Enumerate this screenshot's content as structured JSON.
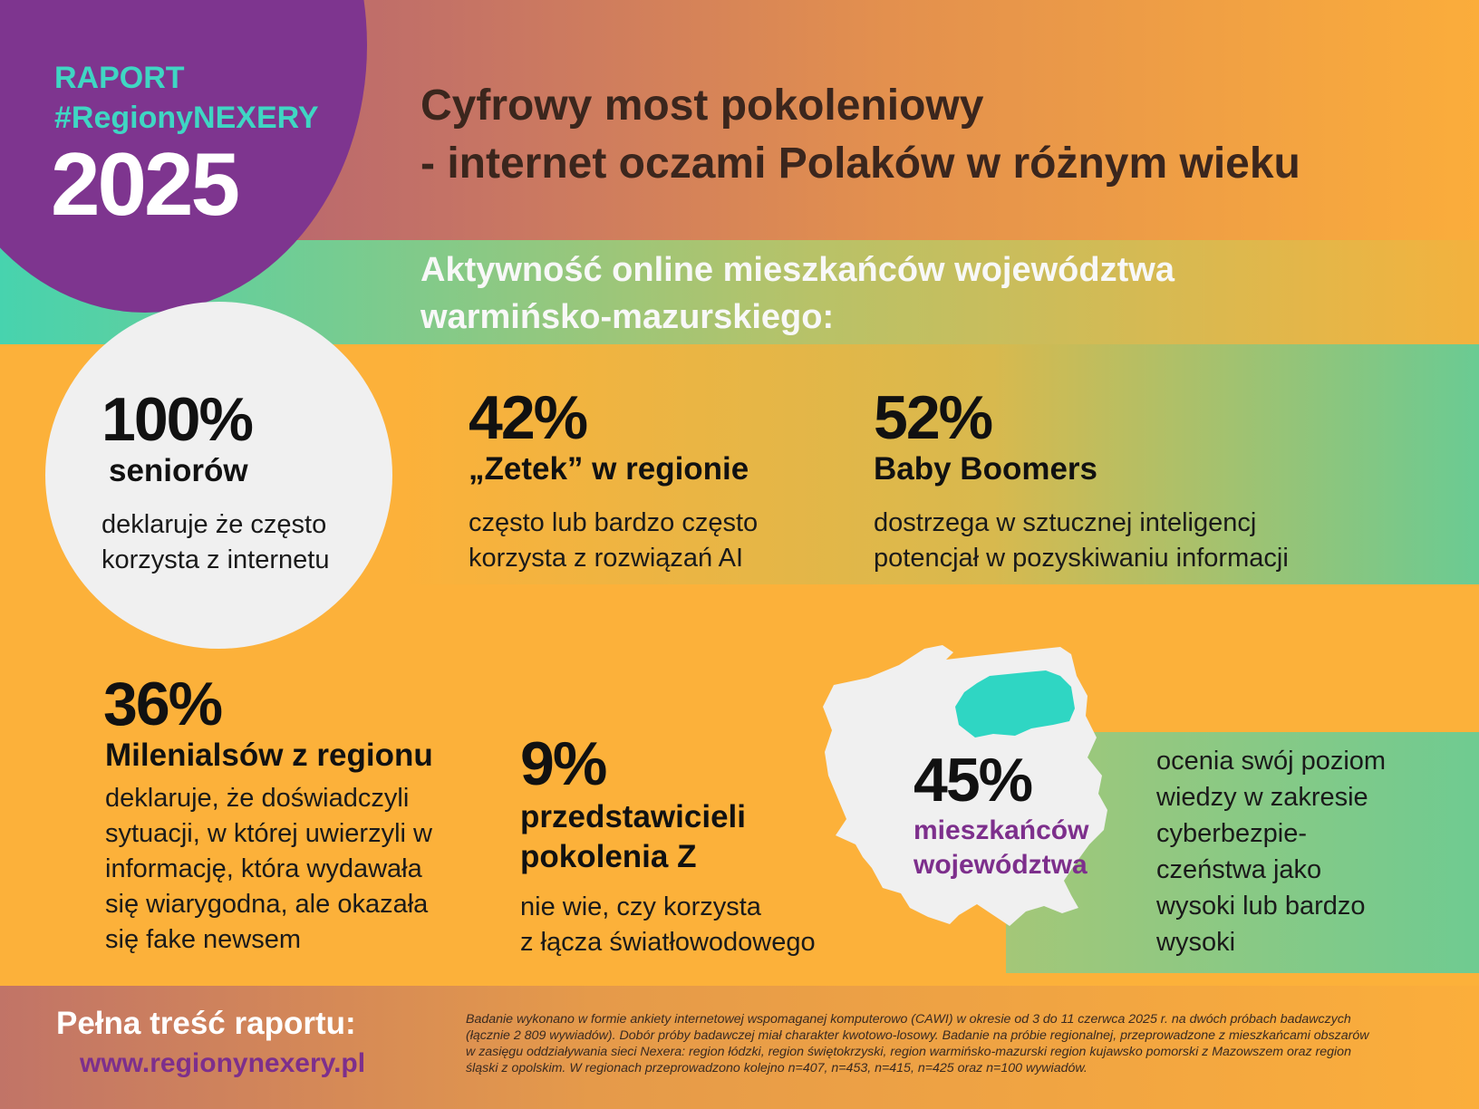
{
  "header": {
    "report_label": "RAPORT",
    "hashtag": "#RegionyNEXERY",
    "year": "2025",
    "title_lines": [
      "Cyfrowy most pokoleniowy",
      "- internet oczami Polaków w różnym wieku"
    ]
  },
  "subtitle_lines": [
    "Aktywność online mieszkańców województwa",
    "warmińsko-mazurskiego:"
  ],
  "stats": [
    {
      "value": "100%",
      "label": "seniorów",
      "desc_lines": [
        "deklaruje że często",
        "korzysta z internetu"
      ]
    },
    {
      "value": "42%",
      "label": "„Zetek” w regionie",
      "desc_lines": [
        "często lub bardzo często",
        "korzysta z rozwiązań AI"
      ]
    },
    {
      "value": "52%",
      "label": "Baby Boomers",
      "desc_lines": [
        "dostrzega w sztucznej inteligencj",
        "potencjał w pozyskiwaniu informacji"
      ]
    },
    {
      "value": "36%",
      "label": "Milenialsów z regionu",
      "desc_lines": [
        "deklaruje, że  doświadczyli",
        "sytuacji, w której uwierzyli w",
        "informację, która wydawała",
        "się wiarygodna, ale okazała",
        "się fake newsem"
      ]
    },
    {
      "value": "9%",
      "label_lines": [
        "przedstawicieli",
        "pokolenia Z"
      ],
      "desc_lines": [
        "nie wie, czy korzysta",
        "z łącza światłowodowego"
      ]
    },
    {
      "value": "45%",
      "label_lines": [
        "mieszkańców",
        "województwa"
      ],
      "label_color": "#7d2f8c",
      "desc_lines": [
        "ocenia swój poziom",
        "wiedzy w zakresie",
        "cyberbezpie-",
        "czeństwa jako",
        "wysoki lub bardzo",
        "wysoki"
      ]
    }
  ],
  "map": {
    "icon": "poland-map-icon",
    "fill": "#f0f0f0",
    "highlight_fill": "#2fd6c3"
  },
  "footer": {
    "full_report_label": "Pełna treść raportu:",
    "url": "www.regionynexery.pl",
    "methodology_lines": [
      "Badanie wykonano w formie ankiety internetowej wspomaganej komputerowo (CAWI) w okresie od 3 do 11 czerwca 2025 r. na dwóch próbach badawczych",
      "(łącznie 2 809 wywiadów). Dobór próby badawczej miał charakter kwotowo-losowy. Badanie na próbie regionalnej, przeprowadzone z mieszkańcami obszarów",
      "w zasięgu oddziaływania sieci Nexera: region łódzki, region świętokrzyski, region warmińsko-mazurski region kujawsko pomorski z Mazowszem oraz region",
      "śląski z opolskim. W regionach przeprowadzono kolejno n=407, n=453, n=415, n=425 oraz n=100 wywiadów."
    ]
  },
  "colors": {
    "purple": "#7e358f",
    "orange": "#fcb13a",
    "teal": "#3fd6c3",
    "green": "#6fcb91",
    "dark_text": "#3b261d"
  }
}
